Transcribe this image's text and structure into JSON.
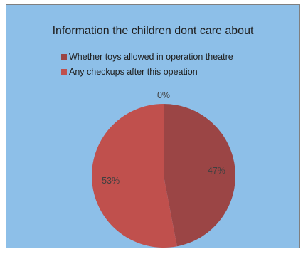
{
  "chart_data": {
    "type": "pie",
    "title": "Information the children dont care about",
    "background": "#8dbfe8",
    "categories": [
      "Whether toys allowed in operation theatre",
      "Any checkups after this opeation"
    ],
    "values": [
      47,
      53
    ],
    "colors": [
      "#9b4545",
      "#c0504d"
    ],
    "data_labels": [
      "47%",
      "53%"
    ],
    "extra_label": "0%",
    "legend": "top-left"
  }
}
